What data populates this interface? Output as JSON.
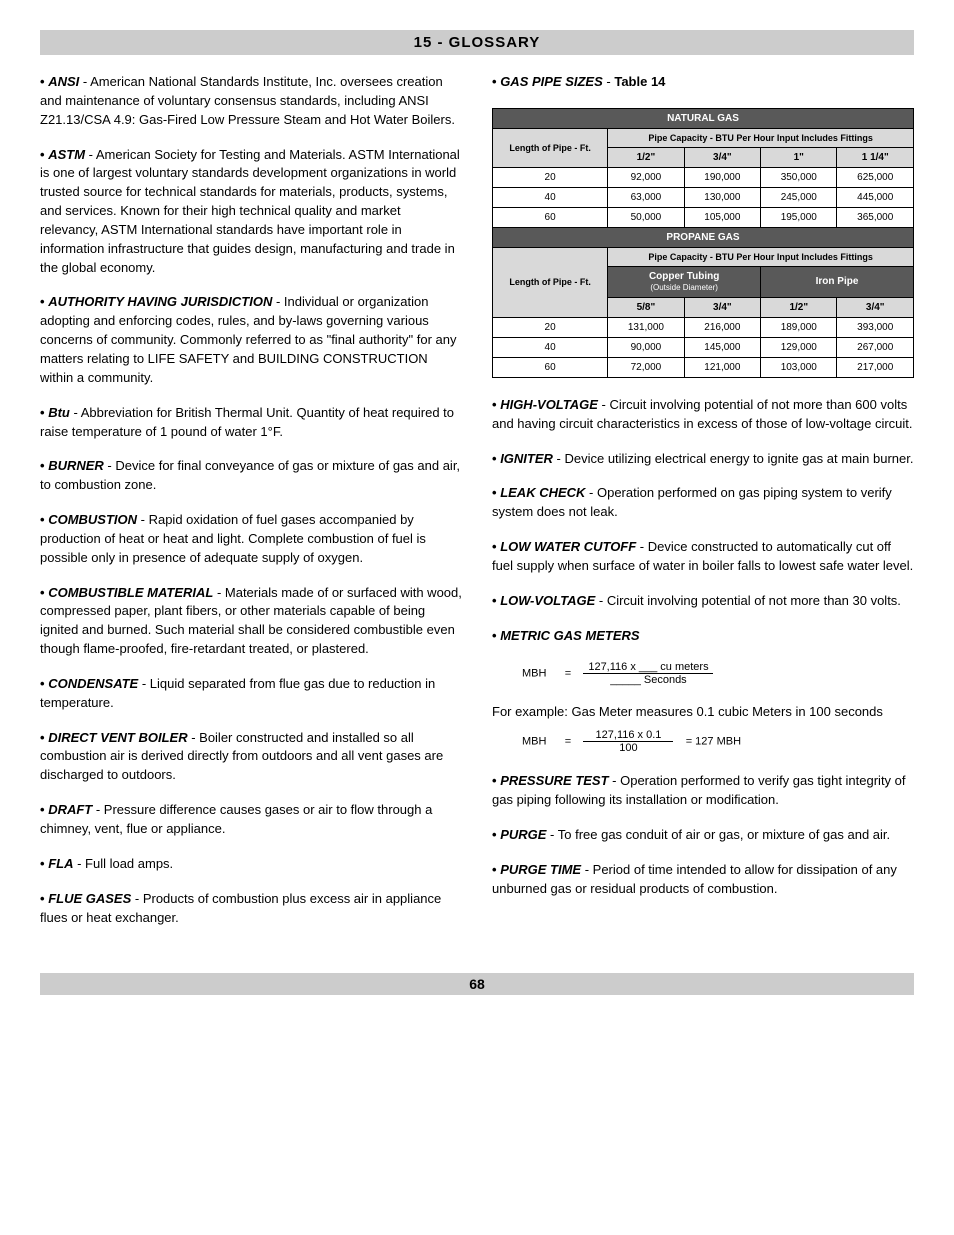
{
  "header": "15 - GLOSSARY",
  "pageNumber": "68",
  "leftEntries": [
    {
      "term": "ANSI",
      "def": " - American National Standards Institute, Inc. oversees creation and maintenance of voluntary consensus standards, including ANSI Z21.13/CSA 4.9: Gas-Fired Low Pressure Steam and Hot Water Boilers."
    },
    {
      "term": "ASTM",
      "def": " - American Society for Testing and Materials. ASTM International is one of largest voluntary standards development organizations in world trusted source for technical standards for materials, products, systems, and services. Known for their high technical quality and market relevancy, ASTM International standards have important role in information infrastructure that guides design, manufacturing and trade in the global economy."
    },
    {
      "term": "AUTHORITY HAVING JURISDICTION",
      "def": " - Individual or organization adopting and enforcing codes, rules, and by-laws governing various concerns of community. Commonly referred to as \"final authority\" for any matters relating to LIFE SAFETY and BUILDING CONSTRUCTION within a community."
    },
    {
      "term": "Btu",
      "def": " - Abbreviation for British Thermal Unit. Quantity of heat required to raise temperature of 1 pound of water 1°F."
    },
    {
      "term": "BURNER",
      "def": " - Device for final conveyance of gas or mixture of gas and air, to combustion zone."
    },
    {
      "term": "COMBUSTION",
      "def": " - Rapid oxidation of fuel gases accompanied by production of heat or heat and light. Complete combustion of fuel is possible only in presence of adequate supply of oxygen."
    },
    {
      "term": "COMBUSTIBLE MATERIAL",
      "def": " - Materials made of or surfaced with wood, compressed paper, plant fibers, or other materials capable of being ignited and burned. Such material shall be considered combustible even though flame-proofed, fire-retardant treated, or plastered."
    },
    {
      "term": "CONDENSATE",
      "def": " - Liquid separated from flue gas due to reduction in temperature."
    },
    {
      "term": "DIRECT VENT BOILER",
      "def": " - Boiler constructed and installed so all combustion air is derived directly from outdoors and all vent gases are discharged to outdoors."
    },
    {
      "term": "DRAFT",
      "def": " - Pressure difference causes gases or air to flow through a chimney, vent, flue or appliance."
    },
    {
      "term": "FLA",
      "def": " - Full load amps."
    },
    {
      "term": "FLUE  GASES",
      "def": " -  Products of combustion plus excess air in appliance flues or heat exchanger."
    }
  ],
  "gasPipeTitle": "GAS PIPE SIZES",
  "gasPipeTableRef": "Table 14",
  "table": {
    "nat_title": "NATURAL GAS",
    "lop": "Length of Pipe - Ft.",
    "capacity_header": "Pipe Capacity - BTU Per Hour Input Includes Fittings",
    "nat_cols": [
      "1/2\"",
      "3/4\"",
      "1\"",
      "1 1/4\""
    ],
    "nat_rows": [
      [
        "20",
        "92,000",
        "190,000",
        "350,000",
        "625,000"
      ],
      [
        "40",
        "63,000",
        "130,000",
        "245,000",
        "445,000"
      ],
      [
        "60",
        "50,000",
        "105,000",
        "195,000",
        "365,000"
      ]
    ],
    "prop_title": "PROPANE GAS",
    "copper": "Copper Tubing",
    "copper_sub": "(Outside Diameter)",
    "iron": "Iron Pipe",
    "prop_cols": [
      "5/8\"",
      "3/4\"",
      "1/2\"",
      "3/4\""
    ],
    "prop_rows": [
      [
        "20",
        "131,000",
        "216,000",
        "189,000",
        "393,000"
      ],
      [
        "40",
        "90,000",
        "145,000",
        "129,000",
        "267,000"
      ],
      [
        "60",
        "72,000",
        "121,000",
        "103,000",
        "217,000"
      ]
    ]
  },
  "rightEntries1": [
    {
      "term": "HIGH-VOLTAGE",
      "def": " - Circuit involving potential of not more than 600 volts and having circuit characteristics in excess of those of low-voltage circuit."
    },
    {
      "term": "IGNITER",
      "def": " -  Device utilizing electrical energy to ignite gas at main burner."
    },
    {
      "term": "LEAK CHECK",
      "def": " - Operation performed on gas piping system to verify system does not leak."
    },
    {
      "term": "LOW WATER CUTOFF",
      "def": " - Device constructed to automatically cut off fuel supply when surface of water in boiler falls to lowest safe water level."
    },
    {
      "term": "LOW-VOLTAGE",
      "def": " - Circuit involving potential of not more than 30 volts."
    }
  ],
  "metricTerm": "METRIC GAS METERS",
  "formula1": {
    "label": "MBH",
    "eq": "=",
    "num": "127,116 x ___ cu meters",
    "den": "_____ Seconds"
  },
  "example": "For example: Gas Meter measures 0.1 cubic Meters in 100 seconds",
  "formula2": {
    "label": "MBH",
    "eq": "=",
    "num": "127,116 x 0.1",
    "den": "100",
    "result": "= 127 MBH"
  },
  "rightEntries2": [
    {
      "term": "PRESSURE TEST",
      "def": " - Operation performed to verify gas tight integrity of gas piping following its installation or modification."
    },
    {
      "term": "PURGE",
      "def": " - To free gas conduit of air or gas, or mixture of gas and air."
    },
    {
      "term": "PURGE TIME",
      "def": " - Period of time intended to allow for dissipation of any unburned gas or residual products of combustion."
    }
  ]
}
